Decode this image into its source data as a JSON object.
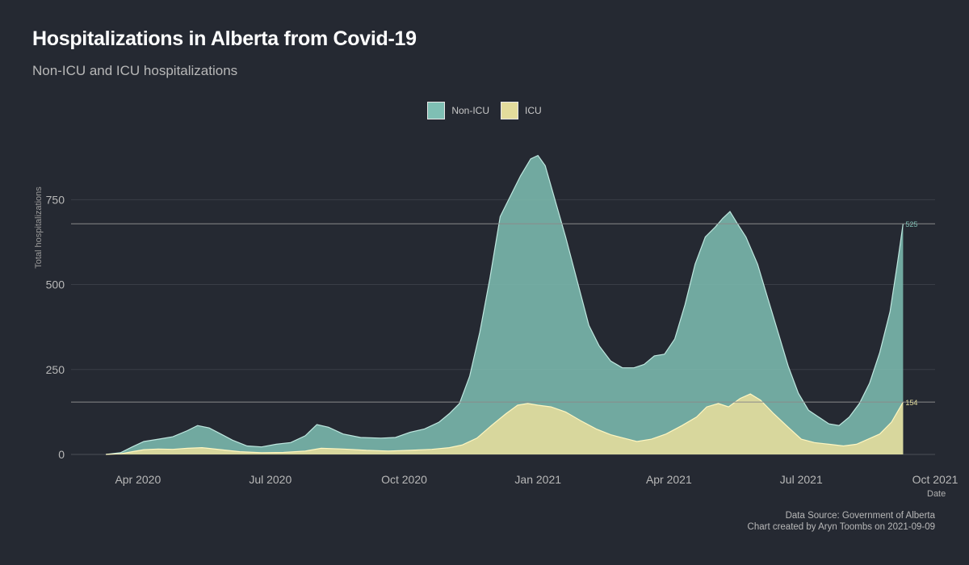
{
  "title": "Hospitalizations in Alberta from Covid-19",
  "subtitle": "Non-ICU and ICU hospitalizations",
  "caption": {
    "line1": "Data Source: Government of Alberta",
    "line2": "Chart created by Aryn Toombs on 2021-09-09"
  },
  "colors": {
    "background": "#252932",
    "non_icu": "#7fbfb4",
    "icu": "#e3dc9c",
    "grid": "#3a3e47",
    "reference_line": "#8a8a8a"
  },
  "chart_data": {
    "type": "area",
    "stacked": false,
    "title": "Hospitalizations in Alberta from Covid-19",
    "subtitle": "Non-ICU and ICU hospitalizations",
    "xlabel": "Date",
    "ylabel": "Total hospitalizations",
    "ylim": [
      0,
      910
    ],
    "xlim": [
      "2020-02-15",
      "2021-10-01"
    ],
    "yticks": [
      0,
      250,
      500,
      750
    ],
    "xticks": [
      {
        "date": "2020-04-01",
        "label": "Apr 2020"
      },
      {
        "date": "2020-07-01",
        "label": "Jul 2020"
      },
      {
        "date": "2020-10-01",
        "label": "Oct 2020"
      },
      {
        "date": "2021-01-01",
        "label": "Jan 2021"
      },
      {
        "date": "2021-04-01",
        "label": "Apr 2021"
      },
      {
        "date": "2021-07-01",
        "label": "Jul 2021"
      },
      {
        "date": "2021-10-01",
        "label": "Oct 2021"
      }
    ],
    "grid": true,
    "legend_position": "top",
    "series": [
      {
        "name": "Non-ICU",
        "points": [
          [
            "2020-03-10",
            0
          ],
          [
            "2020-03-20",
            5
          ],
          [
            "2020-03-28",
            22
          ],
          [
            "2020-04-05",
            38
          ],
          [
            "2020-04-15",
            45
          ],
          [
            "2020-04-25",
            52
          ],
          [
            "2020-05-05",
            70
          ],
          [
            "2020-05-12",
            85
          ],
          [
            "2020-05-20",
            78
          ],
          [
            "2020-05-28",
            60
          ],
          [
            "2020-06-05",
            42
          ],
          [
            "2020-06-15",
            25
          ],
          [
            "2020-06-25",
            22
          ],
          [
            "2020-07-05",
            30
          ],
          [
            "2020-07-15",
            35
          ],
          [
            "2020-07-25",
            55
          ],
          [
            "2020-08-02",
            88
          ],
          [
            "2020-08-10",
            80
          ],
          [
            "2020-08-20",
            60
          ],
          [
            "2020-09-01",
            50
          ],
          [
            "2020-09-15",
            48
          ],
          [
            "2020-09-25",
            50
          ],
          [
            "2020-10-05",
            65
          ],
          [
            "2020-10-15",
            75
          ],
          [
            "2020-10-25",
            95
          ],
          [
            "2020-11-01",
            120
          ],
          [
            "2020-11-08",
            150
          ],
          [
            "2020-11-15",
            230
          ],
          [
            "2020-11-22",
            360
          ],
          [
            "2020-11-29",
            520
          ],
          [
            "2020-12-06",
            700
          ],
          [
            "2020-12-13",
            760
          ],
          [
            "2020-12-20",
            820
          ],
          [
            "2020-12-27",
            870
          ],
          [
            "2021-01-01",
            880
          ],
          [
            "2021-01-06",
            850
          ],
          [
            "2021-01-12",
            760
          ],
          [
            "2021-01-20",
            640
          ],
          [
            "2021-01-28",
            510
          ],
          [
            "2021-02-05",
            380
          ],
          [
            "2021-02-12",
            320
          ],
          [
            "2021-02-20",
            275
          ],
          [
            "2021-02-28",
            255
          ],
          [
            "2021-03-08",
            255
          ],
          [
            "2021-03-15",
            265
          ],
          [
            "2021-03-22",
            290
          ],
          [
            "2021-03-29",
            295
          ],
          [
            "2021-04-05",
            340
          ],
          [
            "2021-04-12",
            440
          ],
          [
            "2021-04-19",
            560
          ],
          [
            "2021-04-26",
            640
          ],
          [
            "2021-05-03",
            670
          ],
          [
            "2021-05-08",
            695
          ],
          [
            "2021-05-13",
            715
          ],
          [
            "2021-05-18",
            680
          ],
          [
            "2021-05-24",
            640
          ],
          [
            "2021-06-01",
            560
          ],
          [
            "2021-06-08",
            460
          ],
          [
            "2021-06-15",
            360
          ],
          [
            "2021-06-22",
            260
          ],
          [
            "2021-06-29",
            180
          ],
          [
            "2021-07-06",
            130
          ],
          [
            "2021-07-13",
            110
          ],
          [
            "2021-07-20",
            90
          ],
          [
            "2021-07-27",
            85
          ],
          [
            "2021-08-03",
            110
          ],
          [
            "2021-08-10",
            150
          ],
          [
            "2021-08-17",
            210
          ],
          [
            "2021-08-24",
            300
          ],
          [
            "2021-08-31",
            420
          ],
          [
            "2021-09-05",
            560
          ],
          [
            "2021-09-09",
            679
          ]
        ]
      },
      {
        "name": "ICU",
        "points": [
          [
            "2020-03-10",
            0
          ],
          [
            "2020-03-20",
            2
          ],
          [
            "2020-03-28",
            8
          ],
          [
            "2020-04-05",
            14
          ],
          [
            "2020-04-15",
            16
          ],
          [
            "2020-04-25",
            15
          ],
          [
            "2020-05-05",
            18
          ],
          [
            "2020-05-15",
            20
          ],
          [
            "2020-05-28",
            14
          ],
          [
            "2020-06-10",
            8
          ],
          [
            "2020-06-25",
            5
          ],
          [
            "2020-07-10",
            6
          ],
          [
            "2020-07-25",
            10
          ],
          [
            "2020-08-05",
            18
          ],
          [
            "2020-08-20",
            16
          ],
          [
            "2020-09-05",
            12
          ],
          [
            "2020-09-20",
            10
          ],
          [
            "2020-10-05",
            12
          ],
          [
            "2020-10-20",
            15
          ],
          [
            "2020-11-01",
            20
          ],
          [
            "2020-11-10",
            28
          ],
          [
            "2020-11-20",
            48
          ],
          [
            "2020-11-30",
            85
          ],
          [
            "2020-12-10",
            120
          ],
          [
            "2020-12-18",
            145
          ],
          [
            "2020-12-25",
            150
          ],
          [
            "2021-01-01",
            145
          ],
          [
            "2021-01-10",
            140
          ],
          [
            "2021-01-20",
            125
          ],
          [
            "2021-01-30",
            100
          ],
          [
            "2021-02-10",
            75
          ],
          [
            "2021-02-20",
            58
          ],
          [
            "2021-03-01",
            48
          ],
          [
            "2021-03-10",
            38
          ],
          [
            "2021-03-20",
            45
          ],
          [
            "2021-03-30",
            60
          ],
          [
            "2021-04-10",
            85
          ],
          [
            "2021-04-20",
            110
          ],
          [
            "2021-04-27",
            140
          ],
          [
            "2021-05-05",
            150
          ],
          [
            "2021-05-12",
            140
          ],
          [
            "2021-05-20",
            165
          ],
          [
            "2021-05-27",
            178
          ],
          [
            "2021-06-03",
            160
          ],
          [
            "2021-06-12",
            120
          ],
          [
            "2021-06-22",
            80
          ],
          [
            "2021-07-01",
            45
          ],
          [
            "2021-07-10",
            35
          ],
          [
            "2021-07-20",
            30
          ],
          [
            "2021-07-30",
            25
          ],
          [
            "2021-08-08",
            30
          ],
          [
            "2021-08-16",
            45
          ],
          [
            "2021-08-24",
            60
          ],
          [
            "2021-09-01",
            95
          ],
          [
            "2021-09-09",
            154
          ]
        ]
      }
    ],
    "annotations": [
      {
        "series": "Non-ICU",
        "label": "525",
        "value": 679
      },
      {
        "series": "ICU",
        "label": "154",
        "value": 154
      }
    ]
  }
}
